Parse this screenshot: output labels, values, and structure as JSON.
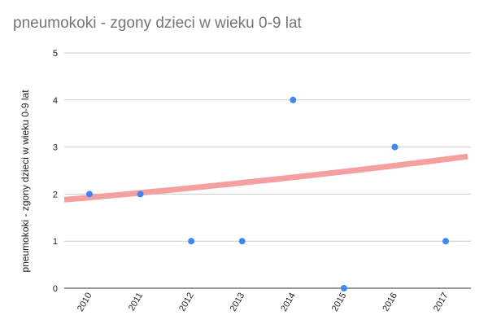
{
  "chart_data": {
    "type": "scatter",
    "title": "pneumokoki - zgony dzieci w wieku 0-9 lat",
    "xlabel": "",
    "ylabel": "pneumokoki - zgony dzieci w wieku 0-9 lat",
    "x": [
      "2010",
      "2011",
      "2012",
      "2013",
      "2014",
      "2015",
      "2016",
      "2017"
    ],
    "series": [
      {
        "values": [
          2,
          2,
          1,
          1,
          4,
          0,
          3,
          1
        ],
        "color": "#4285f4"
      }
    ],
    "trendline": {
      "type": "exponential",
      "color": "#f4a0a0",
      "start_value": 1.88,
      "end_value": 2.8
    },
    "ylim": [
      0,
      5
    ],
    "yticks": [
      0,
      1,
      2,
      3,
      4,
      5
    ],
    "grid": true,
    "legend": "none"
  }
}
